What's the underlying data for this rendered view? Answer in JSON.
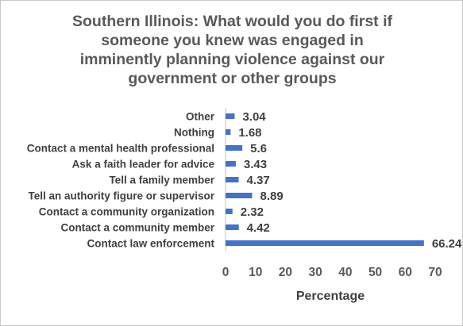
{
  "chart_data": {
    "type": "bar",
    "orientation": "horizontal",
    "title": "Southern Illinois:  What would you do first if\nsomeone you knew was engaged in\nimminently planning violence against our\ngovernment or other groups",
    "xlabel": "Percentage",
    "ylabel": "",
    "categories": [
      "Other",
      "Nothing",
      "Contact a mental health professional",
      "Ask a faith leader for advice",
      "Tell a family member",
      "Tell an authority figure or supervisor",
      "Contact a community organization",
      "Contact a community member",
      "Contact law enforcement"
    ],
    "values": [
      3.04,
      1.68,
      5.6,
      3.43,
      4.37,
      8.89,
      2.32,
      4.42,
      66.24
    ],
    "value_labels": [
      "3.04",
      "1.68",
      "5.6",
      "3.43",
      "4.37",
      "8.89",
      "2.32",
      "4.42",
      "66.24"
    ],
    "xlim": [
      0,
      70
    ],
    "xticks": [
      0,
      10,
      20,
      30,
      40,
      50,
      60,
      70
    ],
    "grid": false,
    "legend": "none",
    "bar_color": "#4472c4"
  }
}
